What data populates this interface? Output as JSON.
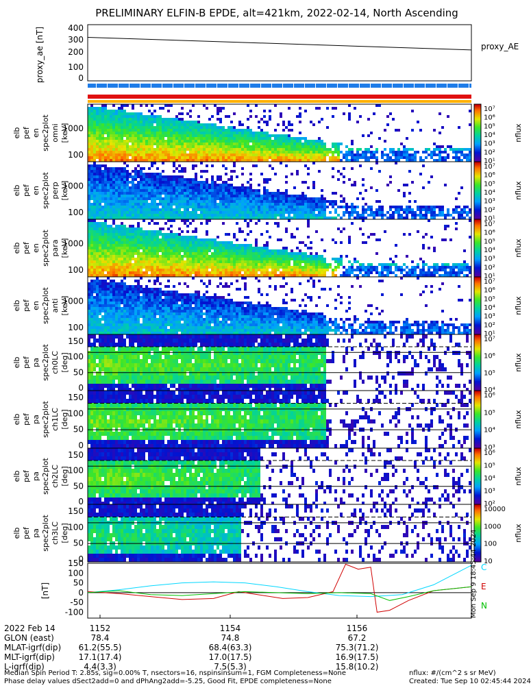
{
  "title": "PRELIMINARY ELFIN-B EPDE, alt=421km, 2022-02-14, North Ascending",
  "colors": {
    "seg_blue": "#1e7ce8",
    "seg_red": "#e01010",
    "seg_orange": "#ffb000",
    "line_c": "#00d7ff",
    "line_e": "#d00000",
    "line_n": "#00c000"
  },
  "proxy_panel": {
    "ylabel": "proxy_ae [nT]",
    "legend": "proxy_AE",
    "yticks": [
      "400",
      "300",
      "200",
      "100",
      "0"
    ]
  },
  "spec_energy_panels": [
    {
      "ylabel": [
        "elb",
        "pef",
        "en",
        "spec2plot",
        "omni",
        "[keV]"
      ],
      "yticks": [
        "1000",
        "100"
      ],
      "zlabel": "nflux",
      "zticks": [
        "10⁷",
        "10⁶",
        "10⁵",
        "10⁴",
        "10³",
        "10²",
        "10¹"
      ]
    },
    {
      "ylabel": [
        "elb",
        "pef",
        "en",
        "spec2plot",
        "perp",
        "[keV]"
      ],
      "yticks": [
        "1000",
        "100"
      ],
      "zlabel": "nflux",
      "zticks": [
        "10⁷",
        "10⁶",
        "10⁵",
        "10⁴",
        "10³",
        "10²",
        "10¹"
      ]
    },
    {
      "ylabel": [
        "elb",
        "pef",
        "en",
        "spec2plot",
        "para",
        "[keV]"
      ],
      "yticks": [
        "1000",
        "100"
      ],
      "zlabel": "nflux",
      "zticks": [
        "10⁷",
        "10⁶",
        "10⁵",
        "10⁴",
        "10³",
        "10²",
        "10¹"
      ]
    },
    {
      "ylabel": [
        "elb",
        "pef",
        "en",
        "spec2plot",
        "anti",
        "[keV]"
      ],
      "yticks": [
        "1000",
        "100"
      ],
      "zlabel": "nflux",
      "zticks": [
        "10⁷",
        "10⁶",
        "10⁵",
        "10⁴",
        "10³",
        "10²",
        "10¹"
      ]
    }
  ],
  "spec_angle_panels": [
    {
      "ylabel": [
        "elb",
        "pef",
        "pa",
        "spec2plot",
        "ch0LC",
        "[deg]"
      ],
      "yticks": [
        "150",
        "100",
        "50",
        "0"
      ],
      "zlabel": "nflux",
      "zticks": [
        "10⁷",
        "10⁶",
        "10⁵",
        "10⁴"
      ]
    },
    {
      "ylabel": [
        "elb",
        "pef",
        "pa",
        "spec2plot",
        "ch1LC",
        "[deg]"
      ],
      "yticks": [
        "150",
        "100",
        "50",
        "0"
      ],
      "zlabel": "nflux",
      "zticks": [
        "10⁶",
        "10⁵",
        "10⁴",
        "10³"
      ]
    },
    {
      "ylabel": [
        "elb",
        "pef",
        "pa",
        "spec2plot",
        "ch2LC",
        "[deg]"
      ],
      "yticks": [
        "150",
        "100",
        "50",
        "0"
      ],
      "zlabel": "nflux",
      "zticks": [
        "10⁶",
        "10⁵",
        "10⁴",
        "10³",
        "10²"
      ]
    },
    {
      "ylabel": [
        "elb",
        "pef",
        "pa",
        "spec2plot",
        "ch3LC",
        "[deg]"
      ],
      "yticks": [
        "150",
        "100",
        "50",
        "0"
      ],
      "zlabel": "nflux",
      "zticks": [
        "10000",
        "1000",
        "100",
        "10"
      ]
    }
  ],
  "field_panel": {
    "ylabel": "[nT]",
    "yticks": [
      "150",
      "100",
      "50",
      "0",
      "-50",
      "-100"
    ],
    "legend": [
      "C",
      "E",
      "N"
    ],
    "side_note": "Mon Sep 9 18:45:44 2024"
  },
  "time_axis": {
    "labels": [
      "2022 Feb 14",
      "GLON (east)",
      "MLAT-igrf(dip)",
      "MLT-igrf(dip)",
      "L-igrf(dip)"
    ],
    "ticks": [
      {
        "time": "1152",
        "glon": "78.4",
        "mlat": "61.2(55.5)",
        "mlt": "17.1(17.4)",
        "l": "4.4(3.3)"
      },
      {
        "time": "1154",
        "glon": "74.8",
        "mlat": "68.4(63.3)",
        "mlt": "17.0(17.5)",
        "l": "7.5(5.3)"
      },
      {
        "time": "1156",
        "glon": "67.2",
        "mlat": "75.3(71.2)",
        "mlt": "16.9(17.5)",
        "l": "15.8(10.2)"
      }
    ]
  },
  "footer": {
    "line1": "Median Spin Period T: 2.85s, sig=0.00% T, nsectors=16, nspinsinsum=1, FGM Completeness=None",
    "line2": "Phase delay values dSect2add=0 and dPhAng2add=-5.25, Good Fit, EPDE completeness=None",
    "units": "nflux: #/(cm^2 s sr MeV)",
    "created": "Created: Tue Sep 10 02:45:44 2024"
  },
  "chart_data": {
    "type": "line",
    "x_range": [
      1151.5,
      1157.6
    ],
    "series": [
      {
        "name": "proxy_AE",
        "x": [
          1151.5,
          1157.6
        ],
        "y": [
          310,
          220
        ]
      }
    ],
    "field": {
      "ylim": [
        -130,
        150
      ],
      "C": {
        "x": [
          1151.5,
          1152.0,
          1152.5,
          1153.0,
          1153.5,
          1154.0,
          1154.5,
          1155.0,
          1155.5,
          1156.0,
          1156.5,
          1157.0,
          1157.6
        ],
        "y": [
          0,
          15,
          35,
          50,
          55,
          50,
          30,
          5,
          -15,
          -20,
          -10,
          40,
          140
        ]
      },
      "E": {
        "x": [
          1151.5,
          1152.0,
          1152.5,
          1153.0,
          1153.5,
          1153.9,
          1154.2,
          1154.6,
          1155.0,
          1155.4,
          1155.6,
          1155.8,
          1156.0,
          1156.1,
          1156.3,
          1156.6,
          1157.0,
          1157.6
        ],
        "y": [
          5,
          -5,
          -20,
          -35,
          -30,
          5,
          -10,
          -30,
          -25,
          5,
          145,
          120,
          130,
          -100,
          -90,
          -40,
          10,
          30
        ]
      },
      "N": {
        "x": [
          1151.5,
          1152.0,
          1152.5,
          1153.0,
          1153.5,
          1154.0,
          1154.5,
          1155.0,
          1155.5,
          1156.0,
          1156.3,
          1156.6,
          1157.0,
          1157.6
        ],
        "y": [
          0,
          10,
          -10,
          -15,
          -5,
          5,
          0,
          -5,
          0,
          -5,
          -40,
          -20,
          10,
          30
        ]
      }
    }
  }
}
